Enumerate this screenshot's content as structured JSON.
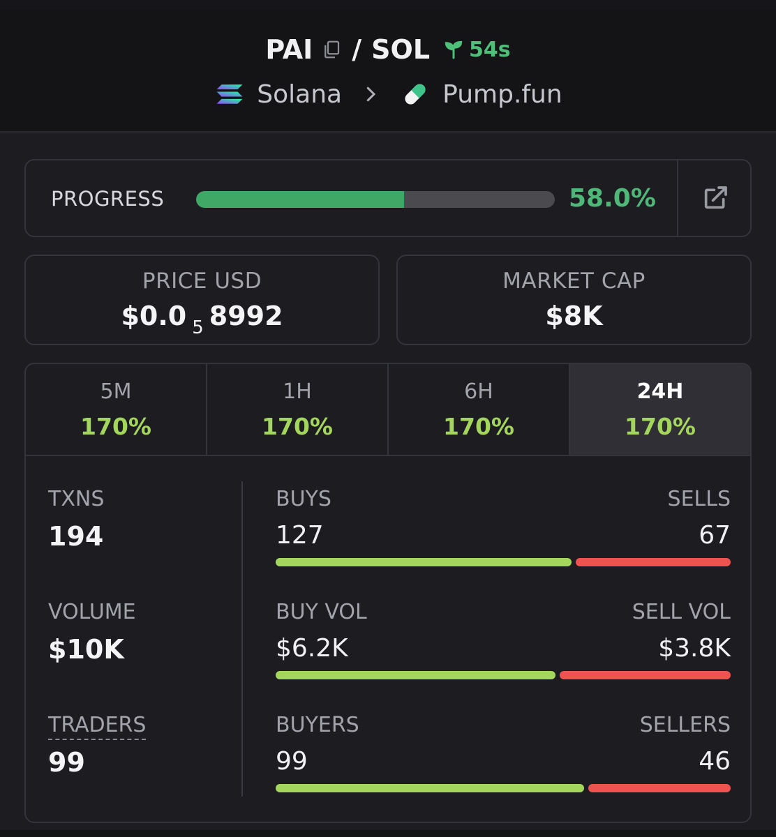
{
  "header": {
    "base_symbol": "PAI",
    "separator": "/",
    "quote_symbol": "SOL",
    "age": "54s",
    "chain": "Solana",
    "dex": "Pump.fun"
  },
  "progress": {
    "label": "PROGRESS",
    "value_text": "58.0%",
    "fraction": 0.58
  },
  "price": {
    "label": "PRICE USD",
    "value_prefix": "$0.0",
    "zero_count": "5",
    "value_suffix": "8992"
  },
  "market_cap": {
    "label": "MARKET CAP",
    "value": "$8K"
  },
  "tabs": [
    {
      "label": "5M",
      "value": "170%"
    },
    {
      "label": "1H",
      "value": "170%"
    },
    {
      "label": "6H",
      "value": "170%"
    },
    {
      "label": "24H",
      "value": "170%",
      "active": true
    }
  ],
  "metrics": {
    "txns": {
      "label": "TXNS",
      "value": "194"
    },
    "volume": {
      "label": "VOLUME",
      "value": "$10K"
    },
    "traders": {
      "label": "TRADERS",
      "value": "99"
    }
  },
  "splits": {
    "txns": {
      "left_label": "BUYS",
      "right_label": "SELLS",
      "left_value": "127",
      "right_value": "67",
      "buy_fraction": 0.655
    },
    "volume": {
      "left_label": "BUY VOL",
      "right_label": "SELL VOL",
      "left_value": "$6.2K",
      "right_value": "$3.8K",
      "buy_fraction": 0.62
    },
    "traders": {
      "left_label": "BUYERS",
      "right_label": "SELLERS",
      "left_value": "99",
      "right_value": "46",
      "buy_fraction": 0.683
    }
  },
  "colors": {
    "accent_green": "#4fb878",
    "buy": "#a4d65e",
    "sell": "#ef5350"
  },
  "icons": [
    "copy-icon",
    "sprout-icon",
    "solana-icon",
    "chevron-right-icon",
    "pill-icon",
    "external-link-icon"
  ]
}
